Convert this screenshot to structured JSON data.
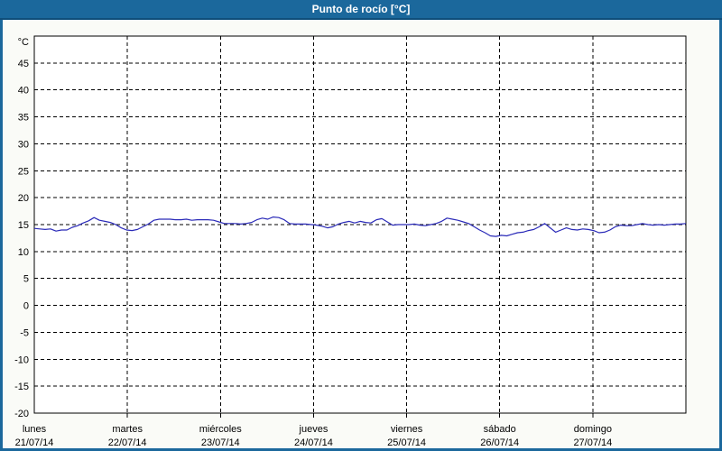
{
  "window": {
    "title": "Punto de rocío [°C]"
  },
  "colors": {
    "accent": "#1b689c",
    "title_border": "#0f4e7a",
    "page_bg": "#fafbf7",
    "plot_bg": "#ffffff",
    "grid": "#000000",
    "axis_text": "#000000",
    "line": "#2a2ab8",
    "title_text": "#ffffff"
  },
  "chart_data": {
    "type": "line",
    "title": "Punto de rocío [°C]",
    "y_unit": "°C",
    "ylabel": "°C",
    "xlabel": "",
    "ylim": [
      -20,
      50
    ],
    "y_ticks": [
      45,
      40,
      35,
      30,
      25,
      20,
      15,
      10,
      5,
      0,
      -5,
      -10,
      -15,
      -20
    ],
    "grid": "dashed",
    "legend_position": "none",
    "x_days": [
      {
        "name": "lunes",
        "date": "21/07/14"
      },
      {
        "name": "martes",
        "date": "22/07/14"
      },
      {
        "name": "miércoles",
        "date": "23/07/14"
      },
      {
        "name": "jueves",
        "date": "24/07/14"
      },
      {
        "name": "viernes",
        "date": "25/07/14"
      },
      {
        "name": "sábado",
        "date": "26/07/14"
      },
      {
        "name": "domingo",
        "date": "27/07/14"
      }
    ],
    "x_range_days": [
      0,
      7
    ],
    "points_evenly_spaced": true,
    "series": [
      {
        "name": "Punto de rocío",
        "color": "#2a2ab8",
        "values": [
          14.3,
          14.2,
          14.1,
          14.2,
          13.8,
          14.0,
          14.0,
          14.5,
          14.8,
          15.3,
          15.7,
          16.3,
          15.8,
          15.6,
          15.4,
          15.0,
          14.4,
          14.0,
          13.9,
          14.1,
          14.6,
          15.1,
          15.8,
          16.0,
          16.0,
          16.0,
          15.9,
          15.9,
          16.0,
          15.8,
          15.9,
          15.9,
          15.9,
          15.8,
          15.5,
          15.2,
          15.2,
          15.2,
          15.1,
          15.2,
          15.4,
          15.9,
          16.2,
          16.0,
          16.4,
          16.3,
          15.9,
          15.2,
          15.1,
          15.1,
          15.1,
          15.0,
          14.9,
          14.7,
          14.4,
          14.6,
          15.1,
          15.4,
          15.6,
          15.3,
          15.6,
          15.4,
          15.3,
          15.9,
          16.1,
          15.5,
          14.9,
          15.0,
          15.0,
          15.0,
          15.1,
          14.9,
          14.8,
          15.0,
          15.2,
          15.6,
          16.2,
          16.0,
          15.8,
          15.5,
          15.2,
          14.6,
          14.0,
          13.5,
          12.9,
          12.8,
          13.0,
          12.9,
          13.2,
          13.5,
          13.6,
          13.9,
          14.1,
          14.6,
          15.2,
          14.4,
          13.6,
          14.0,
          14.4,
          14.1,
          14.0,
          14.2,
          14.1,
          13.9,
          13.5,
          13.6,
          14.0,
          14.6,
          14.9,
          14.8,
          14.8,
          15.0,
          15.2,
          15.0,
          14.9,
          15.0,
          14.9,
          15.0,
          15.1,
          15.1,
          15.2
        ]
      }
    ]
  }
}
